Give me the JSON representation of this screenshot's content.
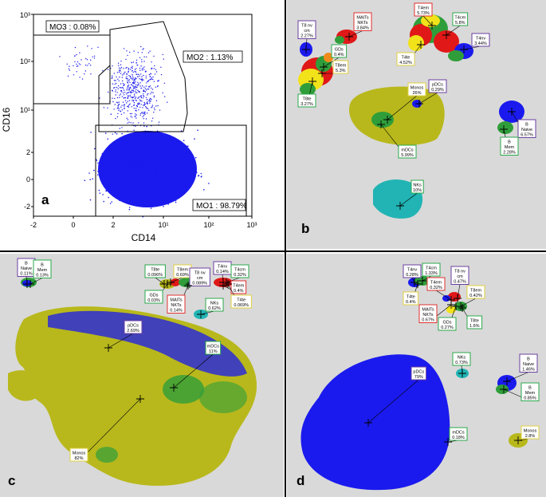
{
  "panel_a": {
    "letter": "a",
    "xlabel": "CD14",
    "ylabel": "CD16",
    "xticks": [
      "-2",
      "0",
      "2",
      "10¹",
      "10²",
      "10³"
    ],
    "yticks": [
      "10³",
      "10²",
      "10¹",
      "2",
      "0",
      "-2"
    ],
    "gates": [
      {
        "label": "MO3 : 0.08%"
      },
      {
        "label": "MO2 : 1.13%"
      },
      {
        "label": "MO1 : 98.79%"
      }
    ]
  },
  "panel_b": {
    "letter": "b",
    "labels": [
      {
        "id": "b-t8nvcm",
        "lines": [
          "T8 nv",
          "cm",
          "2.27%"
        ],
        "border": "#6a3fa0"
      },
      {
        "id": "b-mait",
        "lines": [
          "MAITs",
          "NKTs",
          "3.84%"
        ],
        "border": "#e03030"
      },
      {
        "id": "b-t4em",
        "lines": [
          "T4em",
          "5.73%"
        ],
        "border": "#e03030"
      },
      {
        "id": "b-t4cm",
        "lines": [
          "T4cm",
          "5.8%"
        ],
        "border": "#2aa84a"
      },
      {
        "id": "b-t4nv",
        "lines": [
          "T4nv",
          "3.44%"
        ],
        "border": "#6a3fa0"
      },
      {
        "id": "b-gds",
        "lines": [
          "GDs",
          "0.4%"
        ],
        "border": "#2aa84a"
      },
      {
        "id": "b-t8em",
        "lines": [
          "T8em",
          "5.3%"
        ],
        "border": "#e0d040"
      },
      {
        "id": "b-t4te",
        "lines": [
          "T4te",
          "4.52%"
        ],
        "border": "#e0d040"
      },
      {
        "id": "b-t8te",
        "lines": [
          "T8te",
          "3.27%"
        ],
        "border": "#2aa84a"
      },
      {
        "id": "b-monos",
        "lines": [
          "Monos",
          "26%"
        ],
        "border": "#e0d040"
      },
      {
        "id": "b-pdcs",
        "lines": [
          "pDCs",
          "0.29%"
        ],
        "border": "#6a3fa0"
      },
      {
        "id": "b-mdcs",
        "lines": [
          "mDCs",
          "5.99%"
        ],
        "border": "#2aa84a"
      },
      {
        "id": "b-bnaive",
        "lines": [
          "B",
          "Naive",
          "6.57%"
        ],
        "border": "#6a3fa0"
      },
      {
        "id": "b-bmem",
        "lines": [
          "B",
          "Mem",
          "2.28%"
        ],
        "border": "#2aa84a"
      },
      {
        "id": "b-nks",
        "lines": [
          "NKs",
          "10%"
        ],
        "border": "#2aa84a"
      }
    ]
  },
  "panel_c": {
    "letter": "c",
    "labels": [
      {
        "id": "c-bnaive",
        "lines": [
          "B",
          "Naive",
          "0.11%"
        ],
        "border": "#6a3fa0"
      },
      {
        "id": "c-bmem",
        "lines": [
          "B",
          "Mem",
          "0.13%"
        ],
        "border": "#2aa84a"
      },
      {
        "id": "c-t8te",
        "lines": [
          "T8te",
          "0.096%"
        ],
        "border": "#2aa84a"
      },
      {
        "id": "c-t8em",
        "lines": [
          "T8em",
          "0.69%"
        ],
        "border": "#e0d040"
      },
      {
        "id": "c-t8nvcm",
        "lines": [
          "T8 nv",
          "cm",
          "0.089%"
        ],
        "border": "#6a3fa0"
      },
      {
        "id": "c-t4nv",
        "lines": [
          "T4nv",
          "0.14%"
        ],
        "border": "#6a3fa0"
      },
      {
        "id": "c-t4cm",
        "lines": [
          "T4cm",
          "0.32%"
        ],
        "border": "#2aa84a"
      },
      {
        "id": "c-t4em",
        "lines": [
          "T4em",
          "0.4%"
        ],
        "border": "#e03030"
      },
      {
        "id": "c-gds",
        "lines": [
          "GDs",
          "0.03%"
        ],
        "border": "#2aa84a"
      },
      {
        "id": "c-mait",
        "lines": [
          "MAITs",
          "NKTs",
          "0.14%"
        ],
        "border": "#e03030"
      },
      {
        "id": "c-nks",
        "lines": [
          "NKs",
          "0.62%"
        ],
        "border": "#2aa84a"
      },
      {
        "id": "c-t4te",
        "lines": [
          "T4te",
          "0.069%"
        ],
        "border": "#e0d040"
      },
      {
        "id": "c-pdcs",
        "lines": [
          "pDCs",
          "2.69%"
        ],
        "border": "#6a3fa0"
      },
      {
        "id": "c-mdcs",
        "lines": [
          "mDCs",
          "11%"
        ],
        "border": "#2aa84a"
      },
      {
        "id": "c-monos",
        "lines": [
          "Monos",
          "82%"
        ],
        "border": "#e0d040"
      }
    ]
  },
  "panel_d": {
    "letter": "d",
    "labels": [
      {
        "id": "d-t4nv",
        "lines": [
          "T4nv",
          "0.28%"
        ],
        "border": "#6a3fa0"
      },
      {
        "id": "d-t4cm",
        "lines": [
          "T4cm",
          "1.33%"
        ],
        "border": "#2aa84a"
      },
      {
        "id": "d-t8nvcm",
        "lines": [
          "T8 nv",
          "cm",
          "0.47%"
        ],
        "border": "#6a3fa0"
      },
      {
        "id": "d-t4em",
        "lines": [
          "T4em",
          "0.32%"
        ],
        "border": "#e03030"
      },
      {
        "id": "d-t8em",
        "lines": [
          "T8em",
          "0.42%"
        ],
        "border": "#e0d040"
      },
      {
        "id": "d-t4te",
        "lines": [
          "T4te",
          "0.4%"
        ],
        "border": "#e0d040"
      },
      {
        "id": "d-mait",
        "lines": [
          "MAITs",
          "NKTs",
          "0.67%"
        ],
        "border": "#e03030"
      },
      {
        "id": "d-gds",
        "lines": [
          "GDs",
          "0.27%"
        ],
        "border": "#2aa84a"
      },
      {
        "id": "d-t8te",
        "lines": [
          "T8te",
          "1.6%"
        ],
        "border": "#2aa84a"
      },
      {
        "id": "d-nks",
        "lines": [
          "NKs",
          "0.73%"
        ],
        "border": "#2aa84a"
      },
      {
        "id": "d-bnaive",
        "lines": [
          "B",
          "Naive",
          "1.46%"
        ],
        "border": "#6a3fa0"
      },
      {
        "id": "d-bmem",
        "lines": [
          "B",
          "Mem",
          "0.85%"
        ],
        "border": "#2aa84a"
      },
      {
        "id": "d-pdcs",
        "lines": [
          "pDCs",
          "79%"
        ],
        "border": "#6a3fa0"
      },
      {
        "id": "d-mdcs",
        "lines": [
          "mDCs",
          "0.18%"
        ],
        "border": "#2aa84a"
      },
      {
        "id": "d-monos",
        "lines": [
          "Monos",
          "2.8%"
        ],
        "border": "#e0d040"
      }
    ]
  },
  "colors": {
    "blue": "#1a1aee",
    "olive": "#b8b81c",
    "green": "#2f9e3a",
    "teal": "#22b4b4",
    "red": "#e01818",
    "yellow": "#f2e21a",
    "orange": "#f08a1a",
    "purple": "#5a2fa0",
    "navy": "#1a1a80"
  }
}
